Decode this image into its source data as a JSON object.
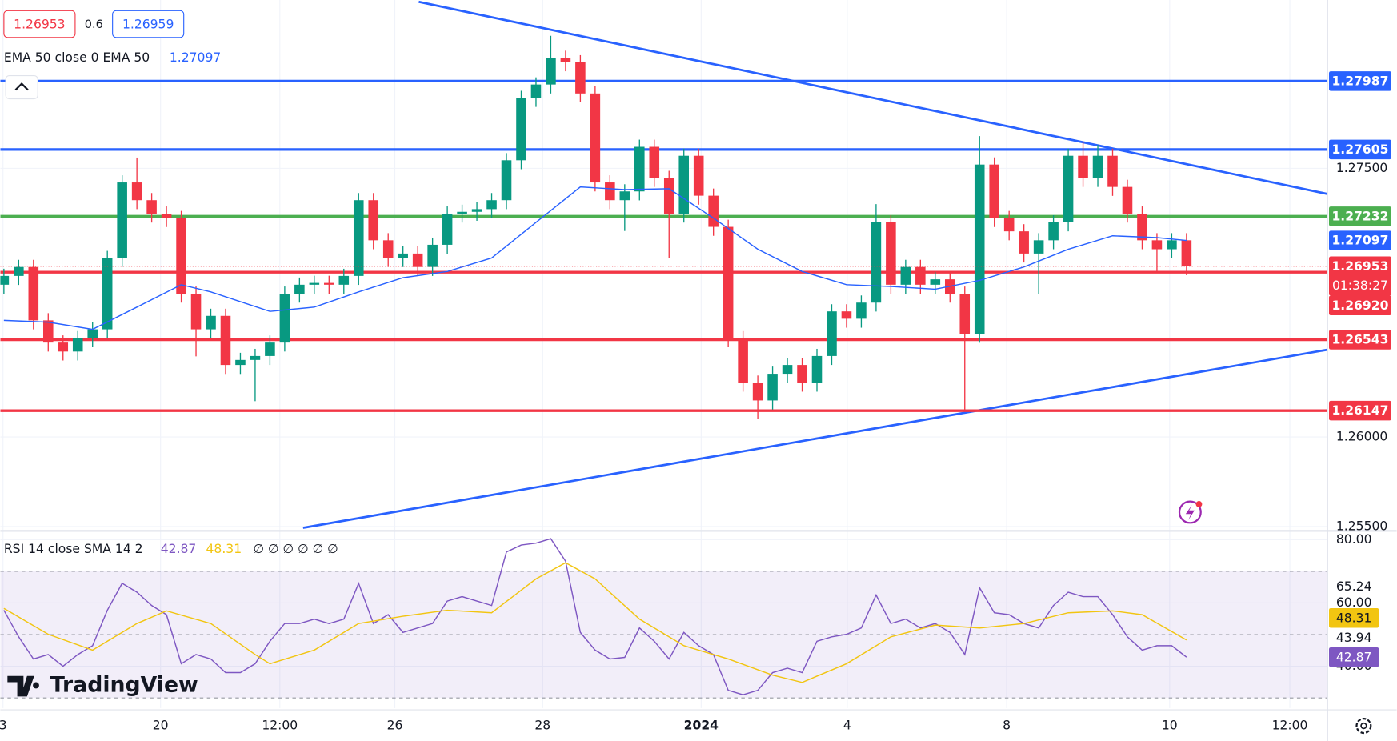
{
  "chart_data": [
    {
      "type": "candlestick",
      "spread": 0.6,
      "ask": 1.26959,
      "open": [
        1.2685,
        1.26899,
        1.26949,
        1.26651,
        1.26527,
        1.26477,
        1.26551,
        1.26601,
        1.26999,
        1.27421,
        1.27322,
        1.27247,
        1.27222,
        1.268,
        1.26601,
        1.26676,
        1.26402,
        1.2643,
        1.26452,
        1.26527,
        1.268,
        1.2685,
        1.2686,
        1.2685,
        1.26899,
        1.27322,
        1.27098,
        1.26999,
        1.27024,
        1.26949,
        1.27073,
        1.27247,
        1.27257,
        1.27272,
        1.27322,
        1.27545,
        1.27893,
        1.27968,
        1.28117,
        1.28092,
        1.27918,
        1.27421,
        1.27322,
        1.27371,
        1.2762,
        1.27446,
        1.27247,
        1.2757,
        1.27347,
        1.27173,
        1.26551,
        1.26303,
        1.26204,
        1.26353,
        1.26402,
        1.26303,
        1.26452,
        1.26701,
        1.2666,
        1.2675,
        1.27198,
        1.2685,
        1.26949,
        1.2685,
        1.2688,
        1.268,
        1.26576,
        1.27521,
        1.27222,
        1.27148,
        1.27024,
        1.27098,
        1.27198,
        1.2757,
        1.27446,
        1.2757,
        1.27396,
        1.27247,
        1.27098,
        1.27048,
        1.27098
      ],
      "high": [
        1.26939,
        1.26989,
        1.26989,
        1.26691,
        1.26567,
        1.26591,
        1.26641,
        1.27039,
        1.27461,
        1.2756,
        1.27362,
        1.27287,
        1.27262,
        1.2684,
        1.26716,
        1.26716,
        1.2647,
        1.26492,
        1.26567,
        1.2684,
        1.2689,
        1.269,
        1.269,
        1.26939,
        1.27362,
        1.27362,
        1.27138,
        1.27064,
        1.27064,
        1.27113,
        1.27287,
        1.27297,
        1.27312,
        1.27362,
        1.27585,
        1.27933,
        1.28008,
        1.2824,
        1.28157,
        1.28132,
        1.27958,
        1.27461,
        1.27411,
        1.2766,
        1.2766,
        1.27486,
        1.2761,
        1.2761,
        1.27387,
        1.27213,
        1.26591,
        1.26343,
        1.26393,
        1.26442,
        1.26442,
        1.26492,
        1.26741,
        1.26741,
        1.2679,
        1.273,
        1.27238,
        1.26989,
        1.26989,
        1.2692,
        1.2692,
        1.2684,
        1.2768,
        1.27561,
        1.27262,
        1.27188,
        1.27138,
        1.27238,
        1.2761,
        1.2765,
        1.2763,
        1.2761,
        1.27436,
        1.27287,
        1.27138,
        1.27138,
        1.27138
      ],
      "low": [
        1.268,
        1.26849,
        1.26601,
        1.26477,
        1.26427,
        1.26427,
        1.26501,
        1.26551,
        1.26949,
        1.27272,
        1.27197,
        1.27172,
        1.2675,
        1.2645,
        1.26551,
        1.26352,
        1.26352,
        1.262,
        1.26402,
        1.26477,
        1.2675,
        1.268,
        1.268,
        1.268,
        1.26849,
        1.27048,
        1.26949,
        1.26949,
        1.26899,
        1.26899,
        1.27023,
        1.27197,
        1.27207,
        1.27222,
        1.27272,
        1.27495,
        1.27843,
        1.27918,
        1.28042,
        1.27868,
        1.27371,
        1.27272,
        1.2715,
        1.27321,
        1.27396,
        1.27,
        1.27197,
        1.27297,
        1.27123,
        1.26501,
        1.26253,
        1.261,
        1.26154,
        1.26303,
        1.26253,
        1.26253,
        1.26402,
        1.2661,
        1.2661,
        1.267,
        1.268,
        1.268,
        1.268,
        1.268,
        1.2675,
        1.2615,
        1.26526,
        1.27172,
        1.27098,
        1.26974,
        1.268,
        1.27048,
        1.27148,
        1.27396,
        1.27396,
        1.27346,
        1.27197,
        1.27048,
        1.2692,
        1.26998,
        1.26903
      ],
      "close": [
        1.26899,
        1.26949,
        1.26651,
        1.26527,
        1.26477,
        1.26551,
        1.26601,
        1.26999,
        1.27421,
        1.27322,
        1.27247,
        1.27222,
        1.268,
        1.26601,
        1.26676,
        1.26402,
        1.2643,
        1.26452,
        1.26527,
        1.268,
        1.2685,
        1.2686,
        1.2685,
        1.26899,
        1.27322,
        1.27098,
        1.26999,
        1.27024,
        1.26949,
        1.27073,
        1.27247,
        1.27257,
        1.27272,
        1.27322,
        1.27545,
        1.27893,
        1.27968,
        1.28117,
        1.28092,
        1.27918,
        1.27421,
        1.27322,
        1.27371,
        1.2762,
        1.27446,
        1.27247,
        1.2757,
        1.27347,
        1.27173,
        1.26551,
        1.26303,
        1.26204,
        1.26353,
        1.26402,
        1.26303,
        1.26452,
        1.26701,
        1.2666,
        1.2675,
        1.27198,
        1.2685,
        1.26949,
        1.2685,
        1.2688,
        1.268,
        1.26576,
        1.27521,
        1.27222,
        1.27148,
        1.27024,
        1.27098,
        1.27198,
        1.2757,
        1.27446,
        1.2757,
        1.27396,
        1.27247,
        1.27098,
        1.27048,
        1.27098,
        1.26953
      ],
      "up_color": "#089981",
      "down_color": "#f23645",
      "countdown": "01:38:27",
      "xlim": [
        -0.24,
        89.52
      ],
      "xticks": [
        {
          "value": -0.06,
          "label": "3"
        },
        {
          "value": 10.6,
          "label": "20"
        },
        {
          "value": 18.67,
          "label": "12:00"
        },
        {
          "value": 26.45,
          "label": "26"
        },
        {
          "value": 36.45,
          "label": "28"
        },
        {
          "value": 47.17,
          "label": "2024"
        },
        {
          "value": 57.05,
          "label": "4"
        },
        {
          "value": 67.83,
          "label": "8"
        },
        {
          "value": 78.86,
          "label": "10"
        },
        {
          "value": 86.99,
          "label": "12:00"
        }
      ],
      "ylim": [
        1.25481,
        1.2844
      ],
      "yticks": [
        {
          "value": 1.255,
          "label": "1.25500"
        },
        {
          "value": 1.26,
          "label": "1.26000"
        },
        {
          "value": 1.275,
          "label": "1.27500"
        }
      ],
      "grid": true,
      "overlays": [
        {
          "name": "EMA 50 close 0 EMA 50",
          "color": "#2962ff",
          "x": [
            0,
            3,
            6,
            9,
            12,
            14,
            18,
            21,
            24,
            27,
            30,
            33,
            36,
            39,
            42,
            45,
            48,
            51,
            54,
            57,
            60,
            63,
            66,
            69,
            72,
            75,
            78,
            80
          ],
          "values": [
            1.26651,
            1.26641,
            1.26601,
            1.26725,
            1.2685,
            1.2681,
            1.26701,
            1.26725,
            1.2681,
            1.26889,
            1.26924,
            1.26999,
            1.27198,
            1.27396,
            1.27381,
            1.27386,
            1.27222,
            1.27048,
            1.26924,
            1.2685,
            1.2684,
            1.26825,
            1.26874,
            1.26949,
            1.27048,
            1.27123,
            1.27113,
            1.27097
          ]
        }
      ],
      "levels": [
        {
          "value": 1.27987,
          "label": "1.27987",
          "color": "#2962ff"
        },
        {
          "value": 1.27605,
          "label": "1.27605",
          "color": "#2962ff"
        },
        {
          "value": 1.27232,
          "label": "1.27232",
          "color": "#4caf50"
        },
        {
          "value": 1.2692,
          "label": "1.26920",
          "color": "#f23645"
        },
        {
          "value": 1.26543,
          "label": "1.26543",
          "color": "#f23645"
        },
        {
          "value": 1.26147,
          "label": "1.26147",
          "color": "#f23645"
        }
      ],
      "trendlines": [
        {
          "x": [
            28.07,
            89.52
          ],
          "values": [
            1.2843,
            1.27357
          ],
          "color": "#2962ff"
        },
        {
          "x": [
            20.24,
            89.52
          ],
          "values": [
            1.25493,
            1.26487
          ],
          "color": "#2962ff"
        }
      ],
      "logo": "TradingView"
    },
    {
      "type": "line",
      "title": "RSI 14 close SMA 14 2",
      "placeholders": "∅ ∅ ∅ ∅ ∅ ∅",
      "ylim": [
        26.8,
        82.5
      ],
      "yticks": [
        {
          "value": 80,
          "label": "80.00"
        },
        {
          "value": 60,
          "label": "60.00"
        },
        {
          "value": 40,
          "label": "40.00"
        }
      ],
      "band": [
        30,
        70
      ],
      "band_color": "#7e57c2",
      "levels": [
        70,
        50,
        30
      ],
      "axis_values": [
        65.24,
        43.94
      ],
      "series": [
        {
          "color": "#7e57c2",
          "values": [
            57.7,
            49.3,
            42.3,
            43.7,
            40.0,
            43.7,
            46.5,
            57.7,
            66.2,
            63.4,
            59.2,
            56.3,
            40.8,
            43.7,
            42.3,
            38.0,
            38.0,
            40.8,
            47.9,
            53.5,
            53.5,
            54.9,
            53.5,
            54.9,
            66.2,
            53.5,
            56.3,
            50.7,
            52.1,
            53.5,
            60.6,
            62.0,
            60.6,
            59.2,
            76.1,
            78.3,
            78.9,
            80.3,
            73.2,
            50.7,
            45.1,
            42.3,
            42.8,
            52.1,
            47.9,
            42.3,
            50.7,
            46.5,
            43.7,
            32.4,
            31.0,
            32.4,
            38.0,
            39.4,
            38.0,
            47.9,
            49.3,
            50.1,
            52.1,
            62.5,
            53.5,
            54.9,
            52.1,
            53.5,
            50.7,
            43.7,
            64.8,
            56.9,
            56.3,
            53.5,
            52.1,
            59.2,
            63.4,
            62.0,
            62.0,
            56.3,
            49.3,
            45.1,
            46.5,
            46.5,
            42.87
          ]
        },
        {
          "color": "#f2c511",
          "x": [
            0,
            3,
            6,
            9,
            11,
            14,
            17,
            18,
            21,
            24,
            27,
            30,
            33,
            36,
            38,
            40,
            43,
            46,
            49,
            52,
            54,
            57,
            60,
            63,
            66,
            69,
            72,
            75,
            77,
            80
          ],
          "values": [
            58.3,
            50.1,
            45.1,
            53.5,
            57.5,
            53.5,
            43.7,
            40.8,
            45.1,
            53.5,
            55.8,
            57.7,
            56.9,
            67.6,
            72.7,
            67.6,
            54.9,
            46.5,
            42.3,
            37.2,
            34.9,
            40.8,
            49.3,
            53.0,
            52.1,
            53.5,
            56.9,
            57.5,
            56.3,
            48.31
          ]
        }
      ]
    }
  ]
}
